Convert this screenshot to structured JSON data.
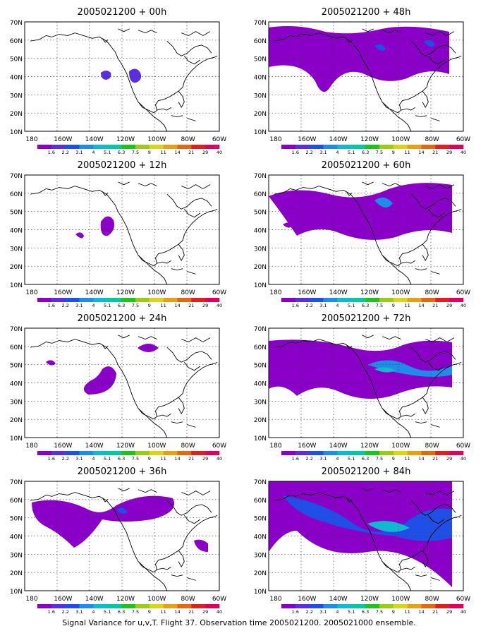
{
  "footer_caption": "Signal Variance for u,v,T. Flight 37. Observation time 2005021200. 2005021000 ensemble.",
  "map": {
    "lon_labels": [
      "180",
      "160W",
      "140W",
      "120W",
      "100W",
      "80W",
      "60W"
    ],
    "lat_labels": [
      "70N",
      "60N",
      "50N",
      "40N",
      "30N",
      "20N",
      "10N"
    ],
    "colorbar_labels": [
      "1.6",
      "2.2",
      "3.1",
      "4",
      "5.1",
      "6.3",
      "7.5",
      "9",
      "11",
      "14",
      "21",
      "29",
      "40"
    ],
    "colorbar_colors": [
      "#8a00c8",
      "#5a2fe0",
      "#1f4fe6",
      "#1e8ce8",
      "#11b9cf",
      "#06c8a0",
      "#1ec31e",
      "#9acb18",
      "#d9d51a",
      "#e8a018",
      "#e06a12",
      "#e02020",
      "#e0005e"
    ]
  },
  "panels": [
    {
      "title": "2005021200 + 00h"
    },
    {
      "title": "2005021200 + 48h"
    },
    {
      "title": "2005021200 + 12h"
    },
    {
      "title": "2005021200 + 60h"
    },
    {
      "title": "2005021200 + 24h"
    },
    {
      "title": "2005021200 + 72h"
    },
    {
      "title": "2005021200 + 36h"
    },
    {
      "title": "2005021200 + 84h"
    }
  ]
}
